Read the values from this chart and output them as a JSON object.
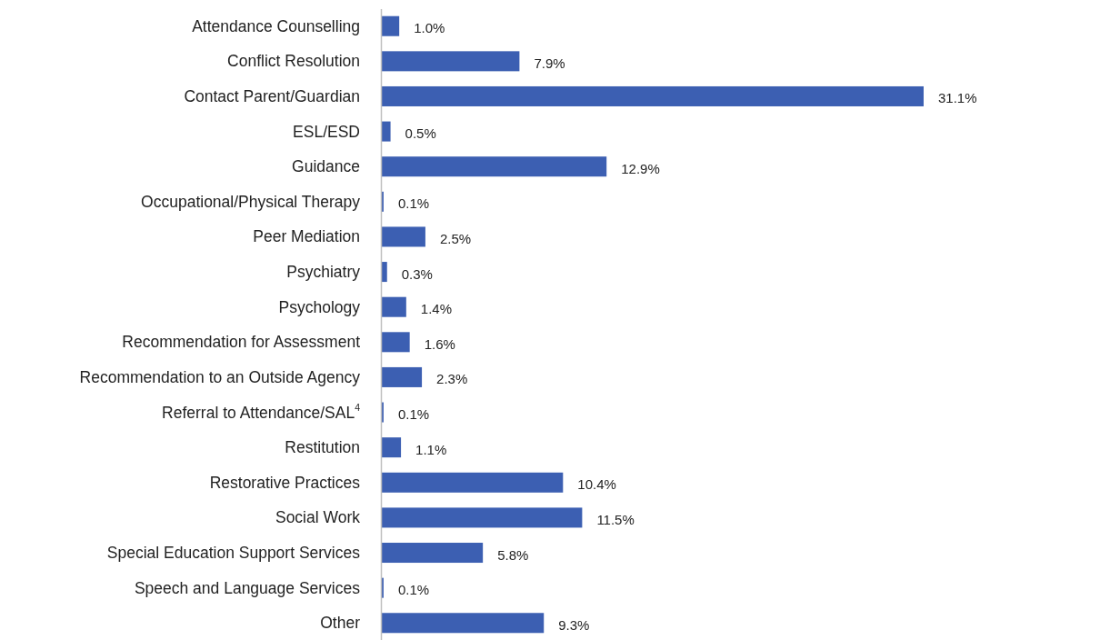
{
  "chart_data": {
    "type": "bar",
    "orientation": "horizontal",
    "color": "#3c5fb2",
    "categories": [
      "Attendance Counselling",
      "Conflict Resolution",
      "Contact Parent/Guardian",
      "ESL/ESD",
      "Guidance",
      "Occupational/Physical Therapy",
      "Peer Mediation",
      "Psychiatry",
      "Psychology",
      "Recommendation for Assessment",
      "Recommendation to an Outside Agency",
      "Referral to Attendance/SAL$^{4}$",
      "Restitution",
      "Restorative Practices",
      "Social Work",
      "Special Education Support Services",
      "Speech and Language Services",
      "Other"
    ],
    "values": [
      1.0,
      7.9,
      31.1,
      0.5,
      12.9,
      0.1,
      2.5,
      0.3,
      1.4,
      1.6,
      2.3,
      0.1,
      1.1,
      10.4,
      11.5,
      5.8,
      0.1,
      9.3
    ],
    "value_labels": [
      "1.0%",
      "7.9%",
      "31.1%",
      "0.5%",
      "12.9%",
      "0.1%",
      "2.5%",
      "0.3%",
      "1.4%",
      "1.6%",
      "2.3%",
      "0.1%",
      "1.1%",
      "10.4%",
      "11.5%",
      "5.8%",
      "0.1%",
      "9.3%"
    ]
  }
}
